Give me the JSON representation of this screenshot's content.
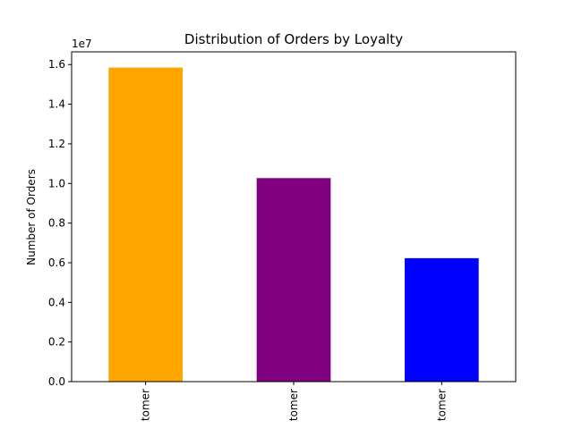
{
  "chart_data": {
    "type": "bar",
    "title": "Distribution of Orders by Loyalty",
    "xlabel": "",
    "ylabel": "Number of Orders",
    "y_scale_label": "1e7",
    "categories": [
      "tomer",
      "tomer",
      "tomer"
    ],
    "values": [
      15850000,
      10270000,
      6230000
    ],
    "colors": [
      "#ffa500",
      "#800080",
      "#0000ff"
    ],
    "ylim": [
      0,
      16642500
    ],
    "yticks": [
      0,
      2000000,
      4000000,
      6000000,
      8000000,
      10000000,
      12000000,
      14000000,
      16000000
    ],
    "ytick_labels": [
      "0.0",
      "0.2",
      "0.4",
      "0.6",
      "0.8",
      "1.0",
      "1.2",
      "1.4",
      "1.6"
    ],
    "grid": false,
    "legend": "none"
  }
}
